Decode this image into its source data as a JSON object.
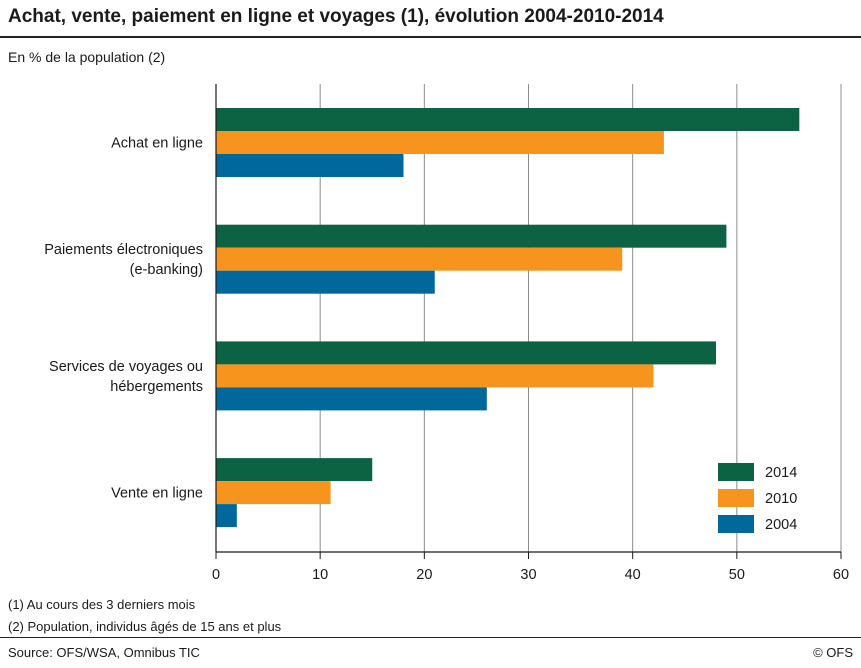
{
  "title": "Achat, vente, paiement en ligne et voyages (1), évolution 2004-2010-2014",
  "subtitle": "En % de la population (2)",
  "notes": [
    "(1) Au cours des 3 derniers mois",
    "(2) Population, individus âgés de 15 ans et plus"
  ],
  "source": "Source: OFS/WSA, Omnibus TIC",
  "copyright": "© OFS",
  "chart_data": {
    "type": "bar",
    "orientation": "horizontal",
    "categories": [
      [
        "Achat en ligne"
      ],
      [
        "Paiements électroniques",
        "(e-banking)"
      ],
      [
        "Services de voyages ou",
        "hébergements"
      ],
      [
        "Vente en ligne"
      ]
    ],
    "series": [
      {
        "name": "2014",
        "color": "#0c6343",
        "values": [
          56,
          49,
          48,
          15
        ]
      },
      {
        "name": "2010",
        "color": "#f7941d",
        "values": [
          43,
          39,
          42,
          11
        ]
      },
      {
        "name": "2004",
        "color": "#00689a",
        "values": [
          18,
          21,
          26,
          2
        ]
      }
    ],
    "xlim": [
      0,
      60
    ],
    "xticks": [
      0,
      10,
      20,
      30,
      40,
      50,
      60
    ],
    "grid": true,
    "legend": "bottom-right"
  }
}
